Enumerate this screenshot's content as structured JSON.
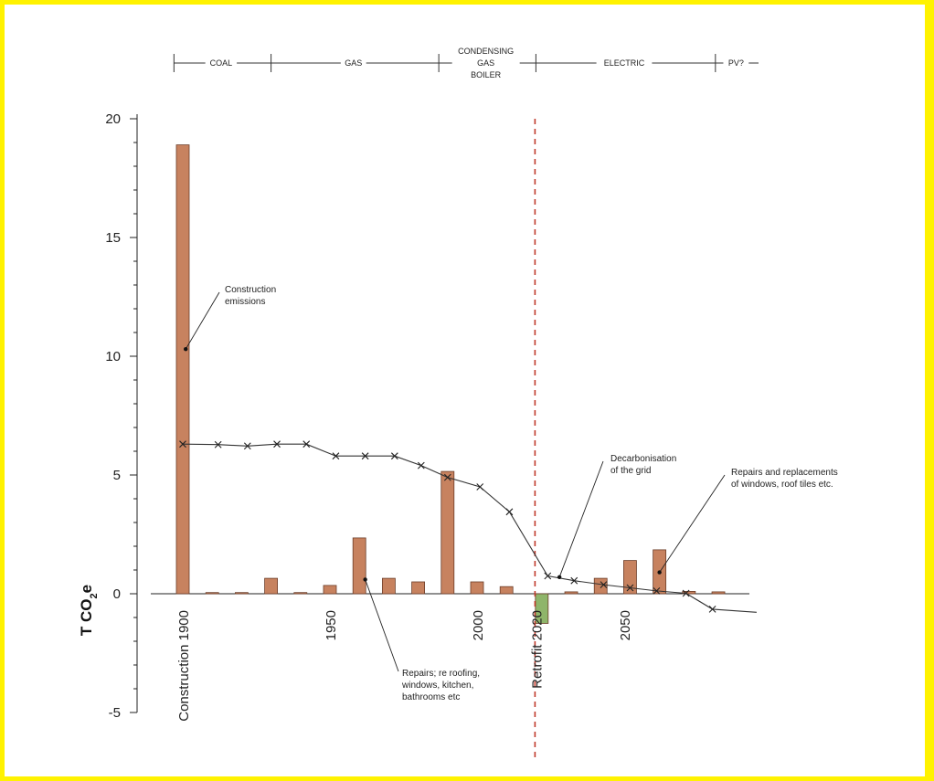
{
  "chart_data": {
    "type": "bar",
    "ylabel_main": "T CO",
    "ylabel_sub": "2",
    "ylabel_tail": "e",
    "ylim": [
      -5,
      20
    ],
    "yticks": [
      -5,
      0,
      5,
      10,
      15,
      20
    ],
    "xlim": [
      1900,
      2095
    ],
    "x_tick_labels": [
      {
        "x": 1900,
        "label": "Construction 1900"
      },
      {
        "x": 1950,
        "label": "1950"
      },
      {
        "x": 2000,
        "label": "2000"
      },
      {
        "x": 2020,
        "label": "Retrofit  2020"
      },
      {
        "x": 2050,
        "label": "2050"
      }
    ],
    "retrofit_year": 2020,
    "bars": [
      {
        "x": 1900,
        "value": 18.9,
        "color": "#c7825f"
      },
      {
        "x": 1910,
        "value": 0.05,
        "color": "#c7825f"
      },
      {
        "x": 1920,
        "value": 0.05,
        "color": "#c7825f"
      },
      {
        "x": 1930,
        "value": 0.65,
        "color": "#c7825f"
      },
      {
        "x": 1940,
        "value": 0.05,
        "color": "#c7825f"
      },
      {
        "x": 1950,
        "value": 0.35,
        "color": "#c7825f"
      },
      {
        "x": 1960,
        "value": 2.35,
        "color": "#c7825f"
      },
      {
        "x": 1970,
        "value": 0.65,
        "color": "#c7825f"
      },
      {
        "x": 1980,
        "value": 0.5,
        "color": "#c7825f"
      },
      {
        "x": 1990,
        "value": 5.15,
        "color": "#c7825f"
      },
      {
        "x": 2000,
        "value": 0.5,
        "color": "#c7825f"
      },
      {
        "x": 2010,
        "value": 0.3,
        "color": "#c7825f"
      },
      {
        "x": 2022,
        "value": -1.25,
        "color": "#8fb56a"
      },
      {
        "x": 2032,
        "value": 0.08,
        "color": "#c7825f"
      },
      {
        "x": 2042,
        "value": 0.65,
        "color": "#c7825f"
      },
      {
        "x": 2052,
        "value": 1.4,
        "color": "#c7825f"
      },
      {
        "x": 2062,
        "value": 1.85,
        "color": "#c7825f"
      },
      {
        "x": 2072,
        "value": 0.1,
        "color": "#c7825f"
      },
      {
        "x": 2082,
        "value": 0.08,
        "color": "#c7825f"
      }
    ],
    "line": {
      "x": [
        1900,
        1912,
        1922,
        1932,
        1942,
        1952,
        1962,
        1972,
        1981,
        1990,
        2001,
        2011,
        2024,
        2033,
        2043,
        2052,
        2061,
        2071,
        2080,
        2095
      ],
      "y": [
        6.3,
        6.28,
        6.22,
        6.3,
        6.3,
        5.8,
        5.8,
        5.8,
        5.4,
        4.9,
        4.5,
        3.45,
        0.75,
        0.55,
        0.38,
        0.25,
        0.12,
        0.02,
        -0.65,
        -0.78
      ],
      "markers_at": [
        0,
        1,
        2,
        3,
        4,
        5,
        6,
        7,
        8,
        9,
        10,
        11,
        12,
        13,
        14,
        15,
        16,
        17,
        18
      ]
    },
    "eras": {
      "dividers": [
        1897,
        1930,
        1987,
        2020,
        2081
      ],
      "labels": [
        {
          "x": 1913,
          "lines": [
            "COAL"
          ]
        },
        {
          "x": 1958,
          "lines": [
            "GAS"
          ]
        },
        {
          "x": 2003,
          "lines": [
            "CONDENSING",
            "GAS",
            "BOILER"
          ]
        },
        {
          "x": 2050,
          "lines": [
            "ELECTRIC"
          ]
        },
        {
          "x": 2088,
          "lines": [
            "PV?"
          ]
        }
      ]
    },
    "annotations": [
      {
        "lines": [
          "Construction",
          "emissions"
        ],
        "point": [
          1901,
          10.3
        ]
      },
      {
        "lines": [
          "Repairs; re roofing,",
          "windows, kitchen,",
          "bathrooms etc"
        ],
        "point": [
          1962,
          0.6
        ]
      },
      {
        "lines": [
          "Decarbonisation",
          "of the grid"
        ],
        "point": [
          2028,
          0.7
        ]
      },
      {
        "lines": [
          "Repairs and replacements",
          "of windows, roof tiles etc."
        ],
        "point": [
          2062,
          0.9
        ]
      }
    ]
  }
}
